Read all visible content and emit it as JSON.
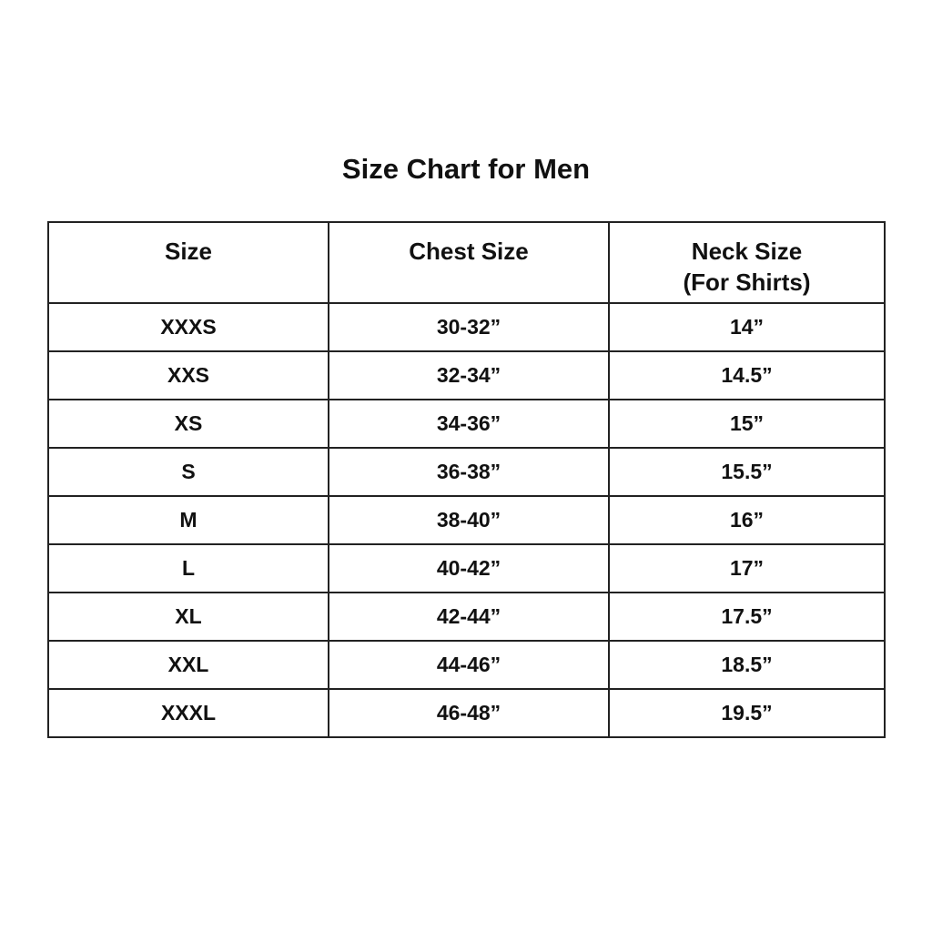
{
  "title": "Size Chart for Men",
  "headers": {
    "size": "Size",
    "chest": "Chest Size",
    "neck": "Neck Size",
    "neck_sub": "(For Shirts)"
  },
  "rows": [
    {
      "size": "XXXS",
      "chest": "30-32”",
      "neck": "14”"
    },
    {
      "size": "XXS",
      "chest": "32-34”",
      "neck": "14.5”"
    },
    {
      "size": "XS",
      "chest": "34-36”",
      "neck": "15”"
    },
    {
      "size": "S",
      "chest": "36-38”",
      "neck": "15.5”"
    },
    {
      "size": "M",
      "chest": "38-40”",
      "neck": "16”"
    },
    {
      "size": "L",
      "chest": "40-42”",
      "neck": "17”"
    },
    {
      "size": "XL",
      "chest": "42-44”",
      "neck": "17.5”"
    },
    {
      "size": "XXL",
      "chest": "44-46”",
      "neck": "18.5”"
    },
    {
      "size": "XXXL",
      "chest": "46-48”",
      "neck": "19.5”"
    }
  ]
}
